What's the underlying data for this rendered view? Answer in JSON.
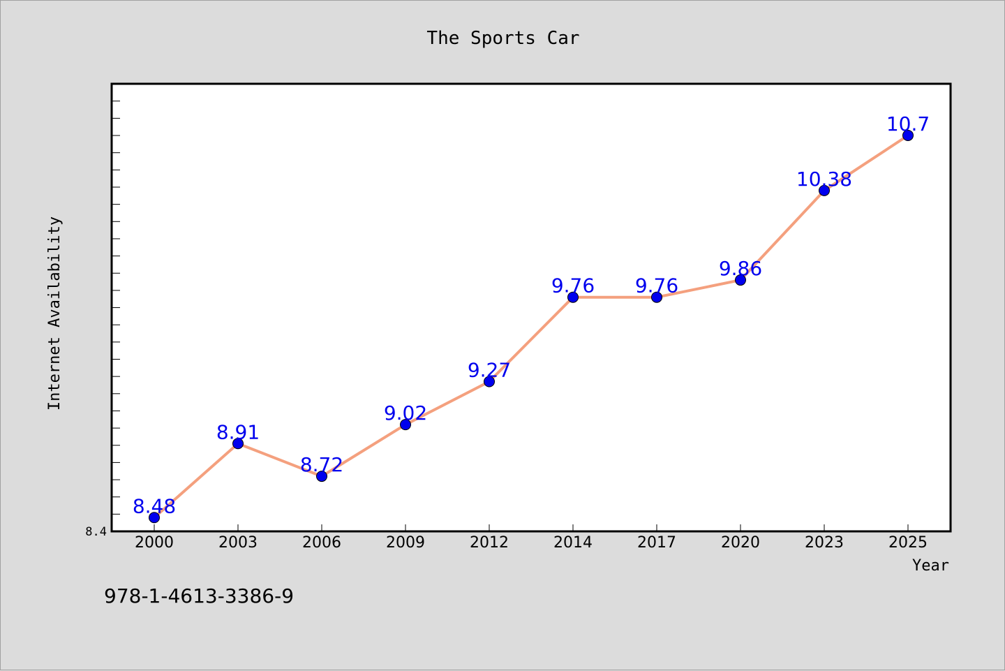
{
  "chart_data": {
    "type": "line",
    "title": "The Sports Car",
    "xlabel": "Year",
    "ylabel": "Internet Availability",
    "categories": [
      "2000",
      "2003",
      "2006",
      "2009",
      "2012",
      "2014",
      "2017",
      "2020",
      "2023",
      "2025"
    ],
    "series": [
      {
        "values": [
          8.48,
          8.91,
          8.72,
          9.02,
          9.27,
          9.76,
          9.76,
          9.86,
          10.38,
          10.7
        ],
        "data_labels": [
          "8.48",
          "8.91",
          "8.72",
          "9.02",
          "9.27",
          "9.76",
          "9.76",
          "9.86",
          "10.38",
          "10.7"
        ]
      }
    ],
    "y_tick_label": "8.4",
    "ylim": [
      8.4,
      11.0
    ],
    "grid": false,
    "line_color": "#f4a07e",
    "marker_color": "#0000ee",
    "label_color": "#0000ee"
  },
  "footer_text": "978-1-4613-3386-9"
}
